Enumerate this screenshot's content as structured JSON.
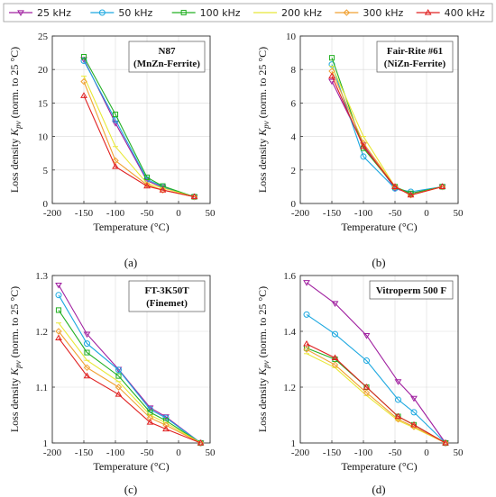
{
  "colors": {
    "25 kHz": "#a020a0",
    "50 kHz": "#1ca8e0",
    "100 kHz": "#22b022",
    "200 kHz": "#e8e838",
    "300 kHz": "#f0a030",
    "400 kHz": "#e02020"
  },
  "legend": {
    "placement": "top",
    "entries": [
      "25 kHz",
      "50 kHz",
      "100 kHz",
      "200 kHz",
      "300 kHz",
      "400 kHz"
    ]
  },
  "chart_data": [
    {
      "type": "line",
      "caption": "(a)",
      "note_line1": "N87",
      "note_line2": "(MnZn-Ferrite)",
      "xlabel": "Temperature (°C)",
      "ylabel_main": "Loss density ",
      "ylabel_sym": "K",
      "ylabel_sub": "pv",
      "ylabel_tail": " (norm. to 25 °C)",
      "xlim": [
        -200,
        50
      ],
      "ylim": [
        0,
        25
      ],
      "xticks": [
        "-200",
        "-150",
        "-100",
        "-50",
        "0",
        "50"
      ],
      "yticks": [
        "0",
        "5",
        "10",
        "15",
        "20",
        "25"
      ],
      "x": [
        -150,
        -100,
        -50,
        -25,
        25
      ],
      "series": [
        {
          "name": "25 kHz",
          "values": [
            21.5,
            12.0,
            3.4,
            2.4,
            1.0
          ]
        },
        {
          "name": "50 kHz",
          "values": [
            21.3,
            12.5,
            3.6,
            2.5,
            1.0
          ]
        },
        {
          "name": "100 kHz",
          "values": [
            21.9,
            13.3,
            3.9,
            2.6,
            1.0
          ]
        },
        {
          "name": "200 kHz",
          "values": [
            19.0,
            8.5,
            3.0,
            2.3,
            1.0
          ]
        },
        {
          "name": "300 kHz",
          "values": [
            18.2,
            6.4,
            2.8,
            2.0,
            1.0
          ]
        },
        {
          "name": "400 kHz",
          "values": [
            16.1,
            5.5,
            2.6,
            2.0,
            1.0
          ]
        }
      ]
    },
    {
      "type": "line",
      "caption": "(b)",
      "note_line1": "Fair-Rite #61",
      "note_line2": "(NiZn-Ferrite)",
      "xlabel": "Temperature (°C)",
      "ylabel_main": "Loss density ",
      "ylabel_sym": "K",
      "ylabel_sub": "pv",
      "ylabel_tail": " (norm. to 25 °C)",
      "xlim": [
        -200,
        50
      ],
      "ylim": [
        0,
        10
      ],
      "xticks": [
        "-200",
        "-150",
        "-100",
        "-50",
        "0",
        "50"
      ],
      "yticks": [
        "0",
        "2",
        "4",
        "6",
        "8",
        "10"
      ],
      "x": [
        -150,
        -100,
        -50,
        -25,
        25
      ],
      "series": [
        {
          "name": "25 kHz",
          "values": [
            7.3,
            3.5,
            0.9,
            0.6,
            1.0
          ]
        },
        {
          "name": "50 kHz",
          "values": [
            8.3,
            2.8,
            0.9,
            0.7,
            1.0
          ]
        },
        {
          "name": "100 kHz",
          "values": [
            8.7,
            3.3,
            1.0,
            0.6,
            1.0
          ]
        },
        {
          "name": "200 kHz",
          "values": [
            8.2,
            4.0,
            1.0,
            0.5,
            1.0
          ]
        },
        {
          "name": "300 kHz",
          "values": [
            7.9,
            3.6,
            1.0,
            0.5,
            1.0
          ]
        },
        {
          "name": "400 kHz",
          "values": [
            7.6,
            3.4,
            1.0,
            0.5,
            1.0
          ]
        }
      ]
    },
    {
      "type": "line",
      "caption": "(c)",
      "note_line1": "FT-3K50T",
      "note_line2": "(Finemet)",
      "xlabel": "Temperature (°C)",
      "ylabel_main": "Loss density ",
      "ylabel_sym": "K",
      "ylabel_sub": "pv",
      "ylabel_tail": " (norm. to 25 °C)",
      "xlim": [
        -200,
        50
      ],
      "ylim": [
        1,
        1.3
      ],
      "xticks": [
        "-200",
        "-150",
        "-100",
        "-50",
        "0",
        "50"
      ],
      "yticks": [
        "1",
        "1.1",
        "1.2",
        "1.3"
      ],
      "x": [
        -190,
        -145,
        -95,
        -45,
        -20,
        35
      ],
      "series": [
        {
          "name": "25 kHz",
          "values": [
            1.283,
            1.195,
            1.132,
            1.063,
            1.047,
            1.0
          ]
        },
        {
          "name": "50 kHz",
          "values": [
            1.265,
            1.178,
            1.131,
            1.06,
            1.045,
            1.0
          ]
        },
        {
          "name": "100 kHz",
          "values": [
            1.238,
            1.162,
            1.12,
            1.055,
            1.04,
            1.0
          ]
        },
        {
          "name": "200 kHz",
          "values": [
            1.215,
            1.148,
            1.11,
            1.05,
            1.036,
            1.0
          ]
        },
        {
          "name": "300 kHz",
          "values": [
            1.2,
            1.135,
            1.1,
            1.045,
            1.032,
            1.0
          ]
        },
        {
          "name": "400 kHz",
          "values": [
            1.188,
            1.12,
            1.087,
            1.037,
            1.025,
            1.0
          ]
        }
      ]
    },
    {
      "type": "line",
      "caption": "(d)",
      "note_line1": "Vitroperm 500 F",
      "note_line2": "",
      "xlabel": "Temperature (°C)",
      "ylabel_main": "Loss density ",
      "ylabel_sym": "K",
      "ylabel_sub": "pv",
      "ylabel_tail": " (norm. to 25 °C)",
      "xlim": [
        -200,
        50
      ],
      "ylim": [
        1,
        1.6
      ],
      "xticks": [
        "-200",
        "-150",
        "-100",
        "-50",
        "0",
        "50"
      ],
      "yticks": [
        "1",
        "1.2",
        "1.4",
        "1.6"
      ],
      "x": [
        -190,
        -145,
        -95,
        -45,
        -20,
        30
      ],
      "series": [
        {
          "name": "25 kHz",
          "values": [
            1.575,
            1.5,
            1.385,
            1.22,
            1.16,
            1.0
          ]
        },
        {
          "name": "50 kHz",
          "values": [
            1.46,
            1.39,
            1.295,
            1.155,
            1.11,
            1.0
          ]
        },
        {
          "name": "100 kHz",
          "values": [
            1.34,
            1.3,
            1.2,
            1.095,
            1.065,
            1.0
          ]
        },
        {
          "name": "200 kHz",
          "values": [
            1.32,
            1.27,
            1.17,
            1.08,
            1.055,
            1.0
          ]
        },
        {
          "name": "300 kHz",
          "values": [
            1.335,
            1.28,
            1.18,
            1.085,
            1.058,
            1.0
          ]
        },
        {
          "name": "400 kHz",
          "values": [
            1.355,
            1.305,
            1.2,
            1.095,
            1.065,
            1.0
          ]
        }
      ]
    }
  ]
}
